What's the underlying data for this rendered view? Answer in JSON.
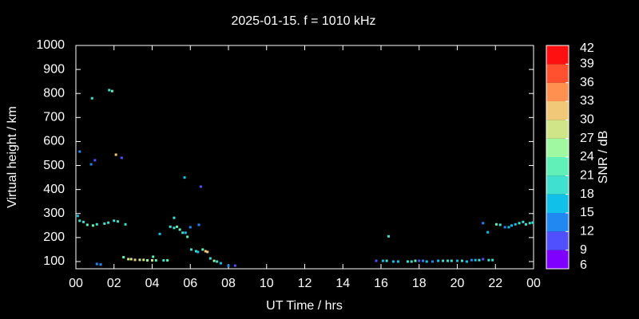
{
  "chart_data": {
    "type": "scatter",
    "title": "2025-01-15. f = 1010 kHz",
    "x_label": "UT Time / hrs",
    "y_label": "Virtual height / km",
    "xlim": [
      0,
      24
    ],
    "xticks": [
      {
        "value": 0,
        "label": "00"
      },
      {
        "value": 2,
        "label": "02"
      },
      {
        "value": 4,
        "label": "04"
      },
      {
        "value": 6,
        "label": "06"
      },
      {
        "value": 8,
        "label": "08"
      },
      10,
      12,
      14,
      16,
      18,
      20,
      22,
      {
        "value": 24,
        "label": "00"
      }
    ],
    "ylim": [
      70,
      1000
    ],
    "yticks": [
      100,
      200,
      300,
      400,
      500,
      600,
      700,
      800,
      900,
      1000
    ],
    "x": [
      0.1,
      0.2,
      0.4,
      0.6,
      0.9,
      1.1,
      1.5,
      1.7,
      2.0,
      2.2,
      2.6,
      0.2,
      0.8,
      1.0,
      0.85,
      1.75,
      1.9,
      2.1,
      2.4,
      1.1,
      1.3,
      2.5,
      2.75,
      2.9,
      3.1,
      3.35,
      3.55,
      3.75,
      4.0,
      4.2,
      4.05,
      4.6,
      4.8,
      4.4,
      4.95,
      5.15,
      5.3,
      5.15,
      5.45,
      5.6,
      5.75,
      5.85,
      5.7,
      6.0,
      6.05,
      6.3,
      6.4,
      6.55,
      6.45,
      6.65,
      6.8,
      6.9,
      7.05,
      7.25,
      7.4,
      7.6,
      8.0,
      8.35,
      15.75,
      16.1,
      16.3,
      16.4,
      16.65,
      16.9,
      17.4,
      17.6,
      17.8,
      18.0,
      18.2,
      18.4,
      18.7,
      19.0,
      19.25,
      19.5,
      19.7,
      20.0,
      20.25,
      20.5,
      20.75,
      20.95,
      21.15,
      21.35,
      21.65,
      21.85,
      21.35,
      21.6,
      22.05,
      22.25,
      22.5,
      22.7,
      22.85,
      23.05,
      23.25,
      23.45,
      23.6,
      23.8,
      23.95
    ],
    "y": [
      290,
      270,
      265,
      253,
      250,
      255,
      258,
      262,
      270,
      267,
      255,
      558,
      505,
      522,
      780,
      814,
      810,
      545,
      532,
      90,
      88,
      118,
      110,
      110,
      107,
      107,
      107,
      105,
      105,
      105,
      120,
      105,
      105,
      215,
      245,
      240,
      245,
      282,
      233,
      220,
      220,
      203,
      450,
      243,
      150,
      143,
      140,
      412,
      253,
      150,
      143,
      140,
      113,
      103,
      100,
      93,
      83,
      83,
      103,
      103,
      103,
      205,
      100,
      100,
      100,
      100,
      103,
      103,
      103,
      100,
      100,
      103,
      103,
      103,
      103,
      103,
      103,
      100,
      106,
      106,
      106,
      110,
      106,
      106,
      260,
      222,
      255,
      253,
      243,
      243,
      250,
      255,
      260,
      265,
      255,
      260,
      262
    ],
    "snr": [
      15,
      18,
      18,
      21,
      21,
      18,
      18,
      18,
      18,
      18,
      18,
      12,
      12,
      9,
      18,
      18,
      21,
      30,
      9,
      12,
      12,
      21,
      27,
      27,
      30,
      27,
      27,
      24,
      27,
      21,
      21,
      18,
      21,
      15,
      18,
      18,
      21,
      18,
      21,
      18,
      15,
      21,
      15,
      12,
      18,
      18,
      15,
      9,
      12,
      21,
      30,
      30,
      18,
      24,
      18,
      15,
      12,
      9,
      9,
      15,
      18,
      18,
      15,
      15,
      18,
      18,
      21,
      9,
      12,
      15,
      12,
      15,
      18,
      18,
      18,
      15,
      18,
      15,
      12,
      15,
      18,
      9,
      18,
      18,
      12,
      15,
      21,
      18,
      12,
      15,
      15,
      15,
      18,
      18,
      18,
      18,
      18
    ],
    "colorbar": {
      "label": "SNR / dB",
      "lim": [
        6,
        42
      ],
      "ticks": [
        6,
        9,
        12,
        15,
        18,
        21,
        24,
        27,
        30,
        33,
        36,
        39,
        42
      ],
      "colors": [
        "#8000ff",
        "#5050ff",
        "#2088f0",
        "#10c0e8",
        "#40e0d0",
        "#60f0b8",
        "#a0f8a0",
        "#d0e488",
        "#f0c878",
        "#ff9050",
        "#ff5030",
        "#ff1010"
      ]
    }
  }
}
